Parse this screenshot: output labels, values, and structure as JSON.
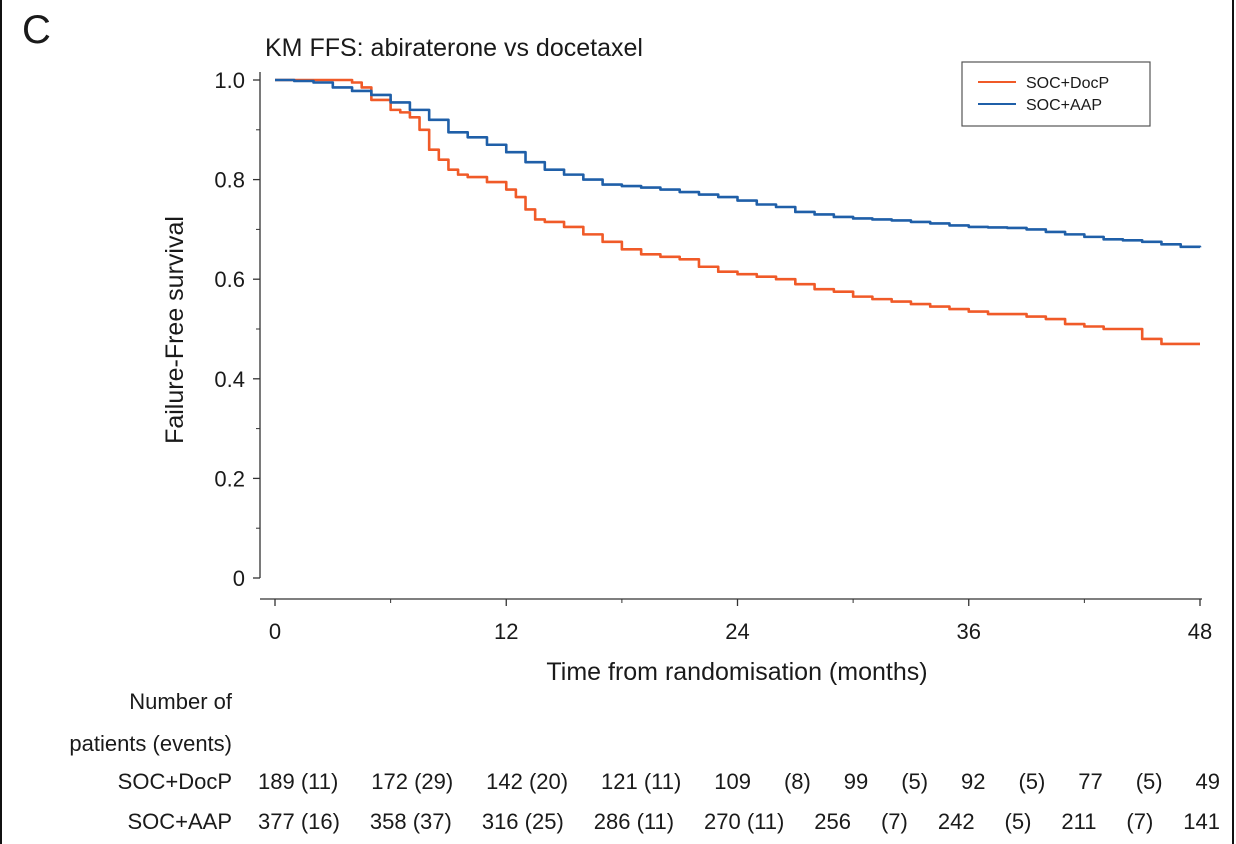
{
  "panel_label": "C",
  "chart_data": {
    "type": "line",
    "title": "KM FFS: abiraterone vs docetaxel",
    "xlabel": "Time from randomisation (months)",
    "ylabel": "Failure-Free survival",
    "xlim": [
      0,
      48
    ],
    "ylim": [
      0,
      1.0
    ],
    "x_ticks": [
      0,
      12,
      24,
      36,
      48
    ],
    "x_tick_labels": [
      "0",
      "12",
      "24",
      "36",
      "48"
    ],
    "y_ticks": [
      0,
      0.2,
      0.4,
      0.6,
      0.8,
      1.0
    ],
    "y_tick_labels": [
      "0",
      "0.2",
      "0.4",
      "0.6",
      "0.8",
      "1.0"
    ],
    "grid": false,
    "legend_position": "top-right",
    "series": [
      {
        "name": "SOC+DocP",
        "color": "#f05a28",
        "x": [
          0,
          1,
          2,
          3,
          4,
          4.5,
          5,
          6,
          6.5,
          7,
          7.5,
          8,
          8.5,
          9,
          9.5,
          10,
          11,
          12,
          12.5,
          13,
          13.5,
          14,
          15,
          16,
          17,
          18,
          19,
          20,
          21,
          22,
          23,
          24,
          25,
          26,
          27,
          28,
          29,
          30,
          31,
          32,
          33,
          34,
          35,
          36,
          37,
          38,
          39,
          40,
          41,
          42,
          43,
          44,
          45,
          46,
          47,
          48
        ],
        "y": [
          1.0,
          1.0,
          1.0,
          1.0,
          0.995,
          0.985,
          0.96,
          0.94,
          0.935,
          0.925,
          0.9,
          0.86,
          0.84,
          0.82,
          0.81,
          0.805,
          0.795,
          0.78,
          0.765,
          0.74,
          0.72,
          0.715,
          0.705,
          0.69,
          0.675,
          0.66,
          0.65,
          0.645,
          0.64,
          0.625,
          0.615,
          0.61,
          0.605,
          0.6,
          0.59,
          0.58,
          0.575,
          0.565,
          0.56,
          0.555,
          0.55,
          0.545,
          0.54,
          0.535,
          0.53,
          0.53,
          0.525,
          0.52,
          0.51,
          0.505,
          0.5,
          0.5,
          0.48,
          0.47,
          0.47,
          0.47
        ]
      },
      {
        "name": "SOC+AAP",
        "color": "#1f5fa8",
        "x": [
          0,
          1,
          2,
          3,
          4,
          5,
          6,
          7,
          8,
          9,
          10,
          11,
          12,
          13,
          14,
          15,
          16,
          17,
          18,
          19,
          20,
          21,
          22,
          23,
          24,
          25,
          26,
          27,
          28,
          29,
          30,
          31,
          32,
          33,
          34,
          35,
          36,
          37,
          38,
          39,
          40,
          41,
          42,
          43,
          44,
          45,
          46,
          47,
          48
        ],
        "y": [
          1.0,
          0.998,
          0.995,
          0.985,
          0.978,
          0.97,
          0.955,
          0.94,
          0.92,
          0.895,
          0.885,
          0.87,
          0.855,
          0.835,
          0.82,
          0.81,
          0.8,
          0.79,
          0.787,
          0.784,
          0.78,
          0.775,
          0.77,
          0.765,
          0.758,
          0.75,
          0.745,
          0.735,
          0.73,
          0.725,
          0.722,
          0.72,
          0.718,
          0.715,
          0.712,
          0.708,
          0.705,
          0.704,
          0.703,
          0.7,
          0.695,
          0.69,
          0.685,
          0.68,
          0.678,
          0.675,
          0.67,
          0.665,
          0.664
        ]
      }
    ]
  },
  "risk_table": {
    "header_line1": "Number of",
    "header_line2": "patients (events)",
    "rows": [
      {
        "label": "SOC+DocP",
        "cells": [
          "189 (11)",
          "172 (29)",
          "142 (20)",
          "121 (11)",
          "109",
          "(8)",
          "99",
          "(5)",
          "92",
          "(5)",
          "77",
          "(5)",
          "49"
        ]
      },
      {
        "label": "SOC+AAP",
        "cells": [
          "377 (16)",
          "358 (37)",
          "316 (25)",
          "286 (11)",
          "270 (11)",
          "256",
          "(7)",
          "242",
          "(5)",
          "211",
          "(7)",
          "141"
        ]
      }
    ]
  }
}
